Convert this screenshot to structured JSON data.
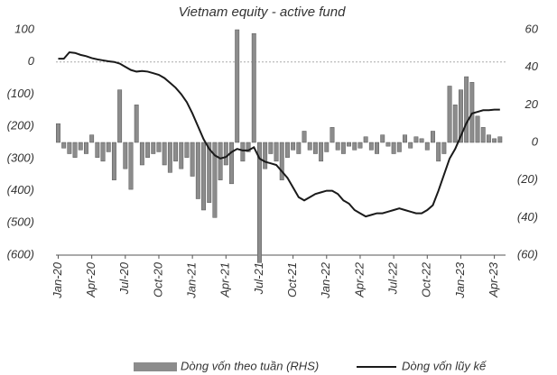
{
  "chart_data": {
    "type": "bar",
    "title": "Vietnam equity - active fund",
    "x": [
      0,
      0.5,
      1,
      1.5,
      2,
      2.5,
      3,
      3.5,
      4,
      4.5,
      5,
      5.5,
      6,
      6.5,
      7,
      7.5,
      8,
      8.5,
      9,
      9.5,
      10,
      10.5,
      11,
      11.5,
      12,
      12.5,
      13,
      13.5,
      14,
      14.5,
      15,
      15.5,
      16,
      16.5,
      17,
      17.5,
      18,
      18.5,
      19,
      19.5,
      20,
      20.5,
      21,
      21.5,
      22,
      22.5,
      23,
      23.5,
      24,
      24.5,
      25,
      25.5,
      26,
      26.5,
      27,
      27.5,
      28,
      28.5,
      29,
      29.5,
      30,
      30.5,
      31,
      31.5,
      32,
      32.5,
      33,
      33.5,
      34,
      34.5,
      35,
      35.5,
      36,
      36.5,
      37,
      37.5,
      38,
      38.5,
      39,
      39.5
    ],
    "series": [
      {
        "name": "Dòng vốn theo tuần (RHS)",
        "type": "bar",
        "axis": "y2",
        "color": "#8c8c8c",
        "values": [
          10,
          -3,
          -6,
          -8,
          -4,
          -6,
          4,
          -8,
          -10,
          -5,
          -20,
          28,
          -14,
          -25,
          20,
          -12,
          -8,
          -6,
          -5,
          -12,
          -16,
          -10,
          -14,
          -8,
          -18,
          -30,
          -36,
          -32,
          -40,
          -20,
          -12,
          -22,
          60,
          -10,
          -5,
          58,
          -64,
          -14,
          -6,
          -10,
          -20,
          -8,
          -4,
          -6,
          6,
          -4,
          -6,
          -10,
          -5,
          8,
          -4,
          -6,
          -2,
          -4,
          -3,
          3,
          -4,
          -6,
          4,
          -2,
          -6,
          -5,
          4,
          -3,
          3,
          2,
          -4,
          6,
          -10,
          -6,
          30,
          20,
          28,
          35,
          32,
          14,
          8,
          4,
          2,
          3
        ]
      },
      {
        "name": "Dòng vốn lũy kế",
        "type": "line",
        "color": "#1a1a1a",
        "values": [
          10,
          10,
          30,
          28,
          22,
          18,
          12,
          8,
          5,
          2,
          0,
          -5,
          -15,
          -25,
          -30,
          -28,
          -30,
          -35,
          -40,
          -50,
          -65,
          -80,
          -100,
          -125,
          -160,
          -200,
          -240,
          -270,
          -290,
          -300,
          -295,
          -280,
          -270,
          -275,
          -275,
          -265,
          -300,
          -310,
          -315,
          -320,
          -340,
          -360,
          -390,
          -420,
          -430,
          -420,
          -410,
          -405,
          -400,
          -400,
          -410,
          -430,
          -440,
          -460,
          -470,
          -480,
          -475,
          -470,
          -470,
          -465,
          -460,
          -455,
          -460,
          -465,
          -470,
          -470,
          -460,
          -445,
          -400,
          -350,
          -300,
          -270,
          -230,
          -190,
          -160,
          -155,
          -150,
          -150,
          -148,
          -148
        ]
      }
    ],
    "xlim": [
      -0.2,
      40
    ],
    "xticks": [
      {
        "value": 0,
        "label": "Jan-20"
      },
      {
        "value": 3,
        "label": "Apr-20"
      },
      {
        "value": 6,
        "label": "Jul-20"
      },
      {
        "value": 9,
        "label": "Oct-20"
      },
      {
        "value": 12,
        "label": "Jan-21"
      },
      {
        "value": 15,
        "label": "Apr-21"
      },
      {
        "value": 18,
        "label": "Jul-21"
      },
      {
        "value": 21,
        "label": "Oct-21"
      },
      {
        "value": 24,
        "label": "Jan-22"
      },
      {
        "value": 27,
        "label": "Apr-22"
      },
      {
        "value": 30,
        "label": "Jul-22"
      },
      {
        "value": 33,
        "label": "Oct-22"
      },
      {
        "value": 36,
        "label": "Jan-23"
      },
      {
        "value": 39,
        "label": "Apr-23"
      }
    ],
    "ylim": [
      -600,
      100
    ],
    "yticks": [
      100,
      0,
      {
        "value": -100,
        "label": "(100)"
      },
      {
        "value": -200,
        "label": "(200)"
      },
      {
        "value": -300,
        "label": "(300)"
      },
      {
        "value": -400,
        "label": "(400)"
      },
      {
        "value": -500,
        "label": "(500)"
      },
      {
        "value": -600,
        "label": "(600)"
      }
    ],
    "y2lim": [
      -60,
      60
    ],
    "y2ticks": [
      60,
      40,
      20,
      0,
      {
        "value": -20,
        "label": "(20)"
      },
      {
        "value": -40,
        "label": "(40)"
      },
      {
        "value": -60,
        "label": "(60)"
      }
    ],
    "zero_line": true
  }
}
